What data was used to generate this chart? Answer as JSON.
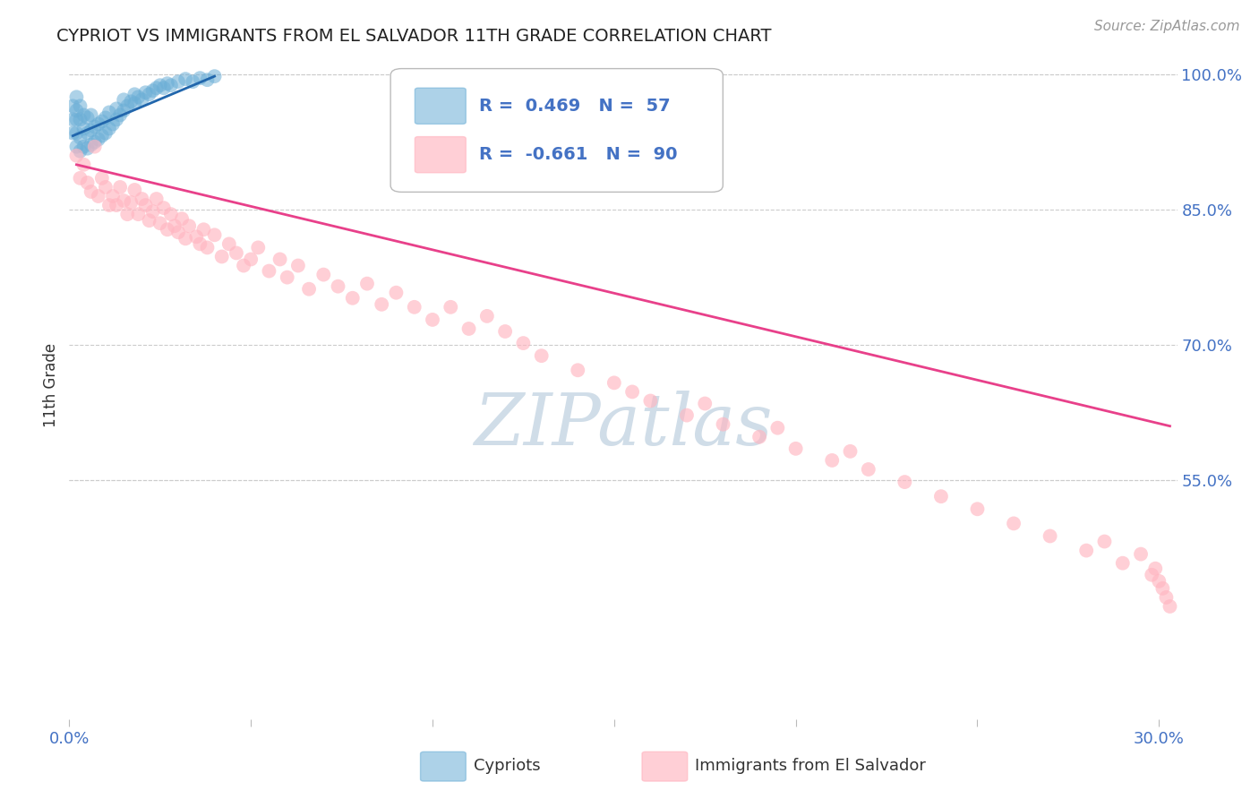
{
  "title": "CYPRIOT VS IMMIGRANTS FROM EL SALVADOR 11TH GRADE CORRELATION CHART",
  "source": "Source: ZipAtlas.com",
  "ylabel": "11th Grade",
  "legend_blue_label": "Cypriots",
  "legend_pink_label": "Immigrants from El Salvador",
  "R_blue": 0.469,
  "N_blue": 57,
  "R_pink": -0.661,
  "N_pink": 90,
  "xlim": [
    0.0,
    0.305
  ],
  "ylim": [
    0.285,
    1.025
  ],
  "ytick_positions": [
    0.55,
    0.7,
    0.85,
    1.0
  ],
  "ytick_labels": [
    "55.0%",
    "70.0%",
    "85.0%",
    "100.0%"
  ],
  "xtick_positions": [
    0.0,
    0.05,
    0.1,
    0.15,
    0.2,
    0.25,
    0.3
  ],
  "xtick_labels": [
    "0.0%",
    "",
    "",
    "",
    "",
    "",
    "30.0%"
  ],
  "background_color": "#ffffff",
  "blue_dot_color": "#6baed6",
  "pink_dot_color": "#ffb6c1",
  "blue_line_color": "#2166ac",
  "pink_line_color": "#e8408a",
  "grid_color": "#cccccc",
  "title_color": "#222222",
  "axis_label_color": "#333333",
  "source_color": "#999999",
  "watermark_color": "#d0dde8",
  "tick_label_color": "#4472C4",
  "blue_scatter_x": [
    0.001,
    0.001,
    0.001,
    0.002,
    0.002,
    0.002,
    0.002,
    0.002,
    0.003,
    0.003,
    0.003,
    0.003,
    0.004,
    0.004,
    0.004,
    0.005,
    0.005,
    0.005,
    0.006,
    0.006,
    0.006,
    0.007,
    0.007,
    0.008,
    0.008,
    0.009,
    0.009,
    0.01,
    0.01,
    0.011,
    0.011,
    0.012,
    0.013,
    0.013,
    0.014,
    0.015,
    0.015,
    0.016,
    0.017,
    0.018,
    0.018,
    0.019,
    0.02,
    0.021,
    0.022,
    0.023,
    0.024,
    0.025,
    0.026,
    0.027,
    0.028,
    0.03,
    0.032,
    0.034,
    0.036,
    0.038,
    0.04
  ],
  "blue_scatter_y": [
    0.935,
    0.95,
    0.965,
    0.92,
    0.935,
    0.95,
    0.96,
    0.975,
    0.915,
    0.93,
    0.95,
    0.965,
    0.92,
    0.94,
    0.955,
    0.918,
    0.935,
    0.952,
    0.922,
    0.938,
    0.955,
    0.925,
    0.942,
    0.928,
    0.945,
    0.932,
    0.948,
    0.935,
    0.952,
    0.94,
    0.958,
    0.945,
    0.95,
    0.962,
    0.955,
    0.96,
    0.972,
    0.965,
    0.97,
    0.968,
    0.978,
    0.975,
    0.972,
    0.98,
    0.978,
    0.982,
    0.985,
    0.988,
    0.985,
    0.99,
    0.988,
    0.992,
    0.995,
    0.992,
    0.996,
    0.994,
    0.998
  ],
  "pink_scatter_x": [
    0.002,
    0.003,
    0.004,
    0.005,
    0.006,
    0.007,
    0.008,
    0.009,
    0.01,
    0.011,
    0.012,
    0.013,
    0.014,
    0.015,
    0.016,
    0.017,
    0.018,
    0.019,
    0.02,
    0.021,
    0.022,
    0.023,
    0.024,
    0.025,
    0.026,
    0.027,
    0.028,
    0.029,
    0.03,
    0.031,
    0.032,
    0.033,
    0.035,
    0.036,
    0.037,
    0.038,
    0.04,
    0.042,
    0.044,
    0.046,
    0.048,
    0.05,
    0.052,
    0.055,
    0.058,
    0.06,
    0.063,
    0.066,
    0.07,
    0.074,
    0.078,
    0.082,
    0.086,
    0.09,
    0.095,
    0.1,
    0.105,
    0.11,
    0.115,
    0.12,
    0.125,
    0.13,
    0.14,
    0.15,
    0.155,
    0.16,
    0.17,
    0.175,
    0.18,
    0.19,
    0.195,
    0.2,
    0.21,
    0.215,
    0.22,
    0.23,
    0.24,
    0.25,
    0.26,
    0.27,
    0.28,
    0.285,
    0.29,
    0.295,
    0.298,
    0.299,
    0.3,
    0.301,
    0.302,
    0.303
  ],
  "pink_scatter_y": [
    0.91,
    0.885,
    0.9,
    0.88,
    0.87,
    0.92,
    0.865,
    0.885,
    0.875,
    0.855,
    0.865,
    0.855,
    0.875,
    0.86,
    0.845,
    0.858,
    0.872,
    0.845,
    0.862,
    0.855,
    0.838,
    0.848,
    0.862,
    0.835,
    0.852,
    0.828,
    0.845,
    0.832,
    0.825,
    0.84,
    0.818,
    0.832,
    0.82,
    0.812,
    0.828,
    0.808,
    0.822,
    0.798,
    0.812,
    0.802,
    0.788,
    0.795,
    0.808,
    0.782,
    0.795,
    0.775,
    0.788,
    0.762,
    0.778,
    0.765,
    0.752,
    0.768,
    0.745,
    0.758,
    0.742,
    0.728,
    0.742,
    0.718,
    0.732,
    0.715,
    0.702,
    0.688,
    0.672,
    0.658,
    0.648,
    0.638,
    0.622,
    0.635,
    0.612,
    0.598,
    0.608,
    0.585,
    0.572,
    0.582,
    0.562,
    0.548,
    0.532,
    0.518,
    0.502,
    0.488,
    0.472,
    0.482,
    0.458,
    0.468,
    0.445,
    0.452,
    0.438,
    0.43,
    0.42,
    0.41
  ],
  "pink_trendline_x": [
    0.002,
    0.303
  ],
  "pink_trendline_y": [
    0.9,
    0.61
  ],
  "blue_trendline_x": [
    0.001,
    0.04
  ],
  "blue_trendline_y": [
    0.932,
    0.998
  ]
}
